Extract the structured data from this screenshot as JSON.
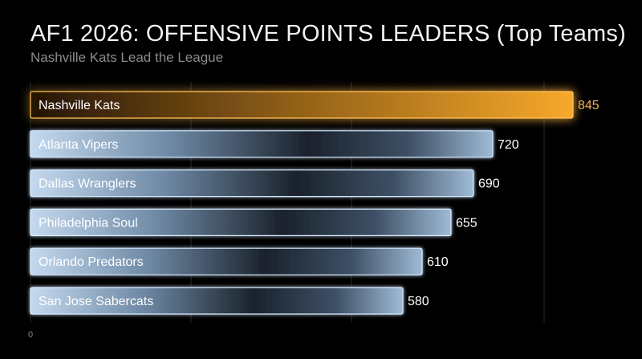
{
  "title": "AF1 2026: OFFENSIVE POINTS LEADERS (Top Teams)",
  "subtitle": "Nashville Kats Lead the League",
  "chart_data": {
    "type": "bar",
    "orientation": "horizontal",
    "categories": [
      "Nashville Kats",
      "Atlanta Vipers",
      "Dallas Wranglers",
      "Philadelphia Soul",
      "Orlando Predators",
      "San Jose Sabercats"
    ],
    "values": [
      845,
      720,
      690,
      655,
      610,
      580
    ],
    "xlim": [
      0,
      880
    ],
    "x_ticks": [
      0
    ],
    "grid": "vertical",
    "highlight": "Nashville Kats",
    "colors": {
      "highlight": "#f5a623",
      "default": "#bcd6ee",
      "edge": "#d8ecff"
    },
    "title": "AF1 2026: OFFENSIVE POINTS LEADERS (Top Teams)",
    "subtitle": "Nashville Kats Lead the League",
    "xlabel": "",
    "ylabel": ""
  }
}
